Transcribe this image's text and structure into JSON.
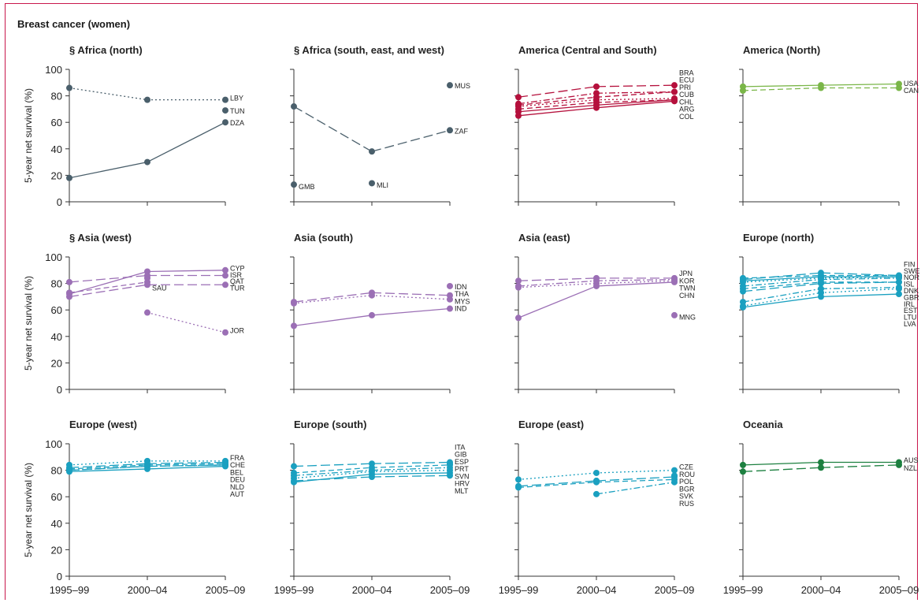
{
  "figure": {
    "title": "Breast cancer (women)",
    "ylabel": "5-year net survival (%)",
    "x_ticks": [
      "1995–99",
      "2000–04",
      "2005–09"
    ],
    "y_ticks": [
      0,
      20,
      40,
      60,
      80,
      100
    ]
  },
  "colors": {
    "africa": "#4a5f6b",
    "america_cs": "#b5103c",
    "america_n": "#7ab648",
    "asia": "#9b6fb5",
    "europe": "#1aa0c0",
    "oceania": "#1d8040"
  },
  "chart_data": [
    {
      "type": "line",
      "title": "§ Africa (north)",
      "color": "africa",
      "ylim": [
        0,
        100
      ],
      "x": [
        "1995–99",
        "2000–04",
        "2005–09"
      ],
      "series": [
        {
          "name": "LBY",
          "values": [
            86,
            77,
            77
          ],
          "dash": "dot"
        },
        {
          "name": "TUN",
          "values": [
            null,
            null,
            69
          ],
          "dash": "solid"
        },
        {
          "name": "DZA",
          "values": [
            18,
            30,
            60
          ],
          "dash": "solid"
        }
      ],
      "labels": [
        {
          "text": "LBY",
          "y": 79
        },
        {
          "text": "TUN",
          "y": 69
        },
        {
          "text": "DZA",
          "y": 60
        }
      ]
    },
    {
      "type": "line",
      "title": "§ Africa (south, east, and west)",
      "color": "africa",
      "ylim": [
        0,
        100
      ],
      "x": [
        "1995–99",
        "2000–04",
        "2005–09"
      ],
      "series": [
        {
          "name": "MUS",
          "values": [
            null,
            null,
            88
          ],
          "dash": "solid"
        },
        {
          "name": "ZAF",
          "values": [
            72,
            38,
            54
          ],
          "dash": "longdash"
        },
        {
          "name": "GMB",
          "values": [
            13,
            null,
            null
          ],
          "dash": "solid"
        },
        {
          "name": "MLI",
          "values": [
            null,
            14,
            null
          ],
          "dash": "solid"
        }
      ],
      "labels": [
        {
          "text": "MUS",
          "y": 88
        },
        {
          "text": "ZAF",
          "y": 54
        },
        {
          "text": "GMB",
          "y": 12,
          "at": 0
        },
        {
          "text": "MLI",
          "y": 13,
          "at": 1
        }
      ]
    },
    {
      "type": "line",
      "title": "America (Central and South)",
      "color": "america_cs",
      "ylim": [
        0,
        100
      ],
      "x": [
        "1995–99",
        "2000–04",
        "2005–09"
      ],
      "series": [
        {
          "name": "BRA",
          "values": [
            79,
            87,
            88
          ],
          "dash": "longdash"
        },
        {
          "name": "ECU",
          "values": [
            74,
            82,
            83
          ],
          "dash": "dashdot"
        },
        {
          "name": "PRI",
          "values": [
            73,
            79,
            83
          ],
          "dash": "dash"
        },
        {
          "name": "CUB",
          "values": [
            72,
            77,
            78
          ],
          "dash": "dot"
        },
        {
          "name": "CHL",
          "values": [
            70,
            75,
            77
          ],
          "dash": "dash"
        },
        {
          "name": "ARG",
          "values": [
            68,
            73,
            77
          ],
          "dash": "solid"
        },
        {
          "name": "COL",
          "values": [
            65,
            71,
            76
          ],
          "dash": "solid"
        }
      ],
      "labels": [
        {
          "text": "BRA",
          "y": 98
        },
        {
          "text": "ECU",
          "y": 92.5
        },
        {
          "text": "PRI",
          "y": 87
        },
        {
          "text": "CUB",
          "y": 81.5
        },
        {
          "text": "CHL",
          "y": 76
        },
        {
          "text": "ARG",
          "y": 70.5
        },
        {
          "text": "COL",
          "y": 65
        }
      ]
    },
    {
      "type": "line",
      "title": "America (North)",
      "color": "america_n",
      "ylim": [
        0,
        100
      ],
      "x": [
        "1995–99",
        "2000–04",
        "2005–09"
      ],
      "series": [
        {
          "name": "USA",
          "values": [
            87,
            88,
            89
          ],
          "dash": "solid"
        },
        {
          "name": "CAN",
          "values": [
            84,
            86,
            86
          ],
          "dash": "dash"
        }
      ],
      "labels": [
        {
          "text": "USA",
          "y": 90
        },
        {
          "text": "CAN",
          "y": 84.5
        }
      ]
    },
    {
      "type": "line",
      "title": "§ Asia (west)",
      "color": "asia",
      "ylim": [
        0,
        100
      ],
      "x": [
        "1995–99",
        "2000–04",
        "2005–09"
      ],
      "series": [
        {
          "name": "CYP",
          "values": [
            72,
            89,
            90
          ],
          "dash": "solid"
        },
        {
          "name": "ISR",
          "values": [
            81,
            86,
            86
          ],
          "dash": "longdash"
        },
        {
          "name": "QAT",
          "values": [
            null,
            84,
            null
          ],
          "dash": "dot"
        },
        {
          "name": "SAU",
          "values": [
            73,
            81,
            null
          ],
          "dash": "dash"
        },
        {
          "name": "TUR",
          "values": [
            70,
            79,
            79
          ],
          "dash": "longdash"
        },
        {
          "name": "JOR",
          "values": [
            null,
            58,
            43
          ],
          "dash": "dot"
        }
      ],
      "labels": [
        {
          "text": "CYP",
          "y": 92
        },
        {
          "text": "ISR",
          "y": 87
        },
        {
          "text": "QAT",
          "y": 82
        },
        {
          "text": "TUR",
          "y": 77
        },
        {
          "text": "SAU",
          "y": 77,
          "at": 1
        },
        {
          "text": "JOR",
          "y": 45
        }
      ]
    },
    {
      "type": "line",
      "title": "Asia (south)",
      "color": "asia",
      "ylim": [
        0,
        100
      ],
      "x": [
        "1995–99",
        "2000–04",
        "2005–09"
      ],
      "series": [
        {
          "name": "IDN",
          "values": [
            null,
            null,
            78
          ],
          "dash": "solid"
        },
        {
          "name": "THA",
          "values": [
            66,
            73,
            71
          ],
          "dash": "longdash"
        },
        {
          "name": "MYS",
          "values": [
            65,
            71,
            68
          ],
          "dash": "dot"
        },
        {
          "name": "IND",
          "values": [
            48,
            56,
            61
          ],
          "dash": "solid"
        }
      ],
      "labels": [
        {
          "text": "IDN",
          "y": 78
        },
        {
          "text": "THA",
          "y": 72.5
        },
        {
          "text": "MYS",
          "y": 67
        },
        {
          "text": "IND",
          "y": 61.5
        }
      ]
    },
    {
      "type": "line",
      "title": "Asia (east)",
      "color": "asia",
      "ylim": [
        0,
        100
      ],
      "x": [
        "1995–99",
        "2000–04",
        "2005–09"
      ],
      "series": [
        {
          "name": "JPN",
          "values": [
            82,
            84,
            84
          ],
          "dash": "longdash"
        },
        {
          "name": "KOR",
          "values": [
            78,
            82,
            83
          ],
          "dash": "dashdot"
        },
        {
          "name": "TWN",
          "values": [
            77,
            80,
            82
          ],
          "dash": "dot"
        },
        {
          "name": "CHN",
          "values": [
            54,
            78,
            81
          ],
          "dash": "solid"
        },
        {
          "name": "MNG",
          "values": [
            null,
            null,
            56
          ],
          "dash": "solid"
        }
      ],
      "labels": [
        {
          "text": "JPN",
          "y": 88
        },
        {
          "text": "KOR",
          "y": 82.5
        },
        {
          "text": "TWN",
          "y": 77
        },
        {
          "text": "CHN",
          "y": 71.5
        },
        {
          "text": "MNG",
          "y": 55
        }
      ]
    },
    {
      "type": "line",
      "title": "Europe (north)",
      "color": "europe",
      "ylim": [
        0,
        100
      ],
      "x": [
        "1995–99",
        "2000–04",
        "2005–09"
      ],
      "series": [
        {
          "name": "FIN",
          "values": [
            83,
            88,
            86
          ],
          "dash": "longdash"
        },
        {
          "name": "SWE",
          "values": [
            84,
            86,
            86
          ],
          "dash": "dash"
        },
        {
          "name": "NOR",
          "values": [
            82,
            85,
            85
          ],
          "dash": "solid"
        },
        {
          "name": "ISL",
          "values": [
            81,
            84,
            85
          ],
          "dash": "dot"
        },
        {
          "name": "DNK",
          "values": [
            78,
            83,
            84
          ],
          "dash": "dashdot"
        },
        {
          "name": "GBR",
          "values": [
            76,
            81,
            81
          ],
          "dash": "dash"
        },
        {
          "name": "IRL",
          "values": [
            74,
            80,
            81
          ],
          "dash": "longdash"
        },
        {
          "name": "EST",
          "values": [
            66,
            76,
            77
          ],
          "dash": "dashdot"
        },
        {
          "name": "LTU",
          "values": [
            63,
            73,
            76
          ],
          "dash": "dot"
        },
        {
          "name": "LVA",
          "values": [
            62,
            70,
            72
          ],
          "dash": "solid"
        }
      ],
      "labels": [
        {
          "text": "FIN",
          "y": 95
        },
        {
          "text": "SWE",
          "y": 90
        },
        {
          "text": "NOR",
          "y": 85
        },
        {
          "text": "ISL",
          "y": 80
        },
        {
          "text": "DNK",
          "y": 75
        },
        {
          "text": "GBR",
          "y": 70
        },
        {
          "text": "IRL",
          "y": 65
        },
        {
          "text": "EST",
          "y": 60
        },
        {
          "text": "LTU",
          "y": 55
        },
        {
          "text": "LVA",
          "y": 50
        }
      ]
    },
    {
      "type": "line",
      "title": "Europe (west)",
      "color": "europe",
      "ylim": [
        0,
        100
      ],
      "x": [
        "1995–99",
        "2000–04",
        "2005–09"
      ],
      "series": [
        {
          "name": "FRA",
          "values": [
            84,
            87,
            87
          ],
          "dash": "dot"
        },
        {
          "name": "CHE",
          "values": [
            82,
            85,
            86
          ],
          "dash": "longdash"
        },
        {
          "name": "BEL",
          "values": [
            81,
            84,
            85
          ],
          "dash": "dash"
        },
        {
          "name": "DEU",
          "values": [
            80,
            83,
            84
          ],
          "dash": "dashdot"
        },
        {
          "name": "NLD",
          "values": [
            80,
            83,
            84
          ],
          "dash": "longdash"
        },
        {
          "name": "AUT",
          "values": [
            79,
            81,
            83
          ],
          "dash": "solid"
        }
      ],
      "labels": [
        {
          "text": "FRA",
          "y": 90
        },
        {
          "text": "CHE",
          "y": 84.5
        },
        {
          "text": "BEL",
          "y": 79
        },
        {
          "text": "DEU",
          "y": 73.5
        },
        {
          "text": "NLD",
          "y": 68
        },
        {
          "text": "AUT",
          "y": 62.5
        }
      ]
    },
    {
      "type": "line",
      "title": "Europe (south)",
      "color": "europe",
      "ylim": [
        0,
        100
      ],
      "x": [
        "1995–99",
        "2000–04",
        "2005–09"
      ],
      "series": [
        {
          "name": "ITA",
          "values": [
            83,
            85,
            86
          ],
          "dash": "longdash"
        },
        {
          "name": "GIB",
          "values": [
            null,
            null,
            85
          ],
          "dash": "solid"
        },
        {
          "name": "ESP",
          "values": [
            78,
            82,
            84
          ],
          "dash": "dash"
        },
        {
          "name": "PRT",
          "values": [
            76,
            80,
            82
          ],
          "dash": "dashdot"
        },
        {
          "name": "SVN",
          "values": [
            74,
            79,
            80
          ],
          "dash": "dot"
        },
        {
          "name": "HRV",
          "values": [
            71,
            77,
            78
          ],
          "dash": "solid"
        },
        {
          "name": "MLT",
          "values": [
            72,
            75,
            76
          ],
          "dash": "longdash"
        }
      ],
      "labels": [
        {
          "text": "ITA",
          "y": 98
        },
        {
          "text": "GIB",
          "y": 92.5
        },
        {
          "text": "ESP",
          "y": 87
        },
        {
          "text": "PRT",
          "y": 81.5
        },
        {
          "text": "SVN",
          "y": 76
        },
        {
          "text": "HRV",
          "y": 70.5
        },
        {
          "text": "MLT",
          "y": 65
        }
      ]
    },
    {
      "type": "line",
      "title": "Europe (east)",
      "color": "europe",
      "ylim": [
        0,
        100
      ],
      "x": [
        "1995–99",
        "2000–04",
        "2005–09"
      ],
      "series": [
        {
          "name": "CZE",
          "values": [
            73,
            78,
            80
          ],
          "dash": "dot"
        },
        {
          "name": "ROU",
          "values": [
            null,
            null,
            76
          ],
          "dash": "solid"
        },
        {
          "name": "POL",
          "values": [
            68,
            72,
            75
          ],
          "dash": "longdash"
        },
        {
          "name": "BGR",
          "values": [
            67,
            71,
            73
          ],
          "dash": "dash"
        },
        {
          "name": "SVK",
          "values": [
            null,
            62,
            71
          ],
          "dash": "dashdot"
        },
        {
          "name": "RUS",
          "values": [
            null,
            72,
            null
          ],
          "dash": "solid"
        }
      ],
      "labels": [
        {
          "text": "CZE",
          "y": 83
        },
        {
          "text": "ROU",
          "y": 77.5
        },
        {
          "text": "POL",
          "y": 72
        },
        {
          "text": "BGR",
          "y": 66.5
        },
        {
          "text": "SVK",
          "y": 61
        },
        {
          "text": "RUS",
          "y": 55.5
        }
      ]
    },
    {
      "type": "line",
      "title": "Oceania",
      "color": "oceania",
      "ylim": [
        0,
        100
      ],
      "x": [
        "1995–99",
        "2000–04",
        "2005–09"
      ],
      "series": [
        {
          "name": "AUS",
          "values": [
            84,
            86,
            86
          ],
          "dash": "solid"
        },
        {
          "name": "NZL",
          "values": [
            79,
            82,
            84
          ],
          "dash": "longdash"
        }
      ],
      "labels": [
        {
          "text": "AUS",
          "y": 88
        },
        {
          "text": "NZL",
          "y": 82
        }
      ]
    }
  ]
}
